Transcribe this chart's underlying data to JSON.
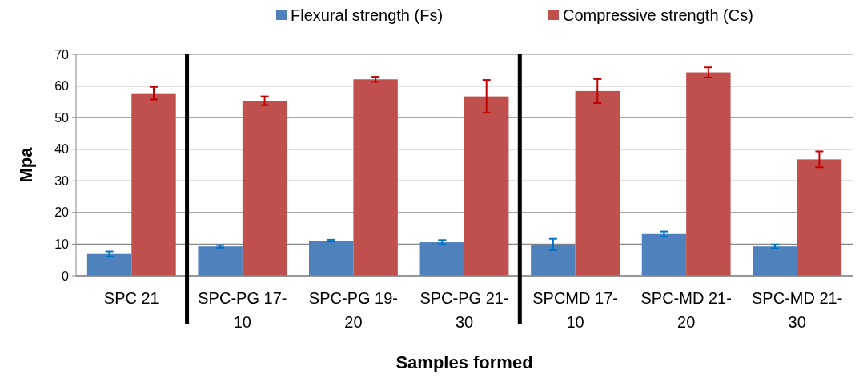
{
  "chart_data": {
    "type": "bar",
    "xlabel": "Samples formed",
    "ylabel": "Mpa",
    "categories": [
      "SPC 21",
      "SPC-PG 17-10",
      "SPC-PG 19-20",
      "SPC-PG 21-30",
      "SPCMD 17-10",
      "SPC-MD 21-20",
      "SPC-MD 21-30"
    ],
    "series": [
      {
        "name": "Flexural strength (Fs)",
        "color": "#4f81bd",
        "values": [
          6.9,
          9.3,
          11.1,
          10.6,
          9.9,
          13.2,
          9.3
        ],
        "errors": [
          0.8,
          0.4,
          0.3,
          0.7,
          1.8,
          0.8,
          0.6
        ]
      },
      {
        "name": "Compressive strength (Cs)",
        "color": "#c0504d",
        "values": [
          57.7,
          55.3,
          62.1,
          56.7,
          58.4,
          64.3,
          36.8
        ],
        "errors": [
          2.0,
          1.4,
          0.8,
          5.2,
          3.8,
          1.6,
          2.5
        ]
      }
    ],
    "ylim": [
      0,
      70
    ],
    "yticks": [
      0,
      10,
      20,
      30,
      40,
      50,
      60,
      70
    ],
    "grid": "y",
    "legend": "top"
  }
}
